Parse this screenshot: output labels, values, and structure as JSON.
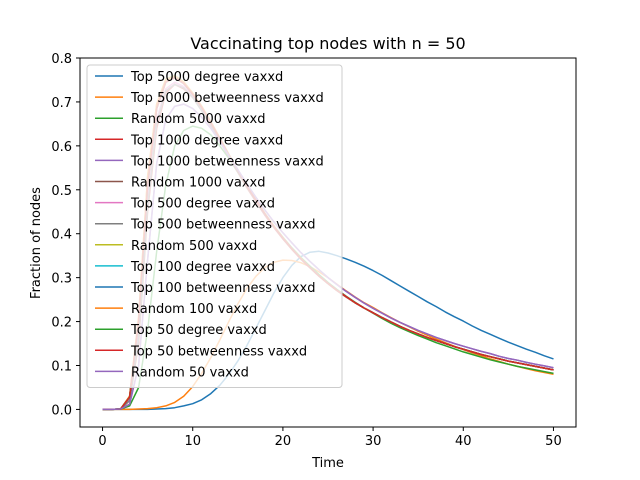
{
  "chart_data": {
    "type": "line",
    "title": "Vaccinating top nodes with n = 50",
    "xlabel": "Time",
    "ylabel": "Fraction of nodes",
    "xlim": [
      -2.5,
      52.5
    ],
    "ylim": [
      -0.04,
      0.8
    ],
    "xticks": [
      0,
      10,
      20,
      30,
      40,
      50
    ],
    "yticks": [
      0.0,
      0.1,
      0.2,
      0.3,
      0.4,
      0.5,
      0.6,
      0.7,
      0.8
    ],
    "legend_placement": "upper-left",
    "x": [
      0,
      1,
      2,
      3,
      4,
      5,
      6,
      7,
      8,
      9,
      10,
      11,
      12,
      13,
      14,
      15,
      16,
      17,
      18,
      19,
      20,
      21,
      22,
      23,
      24,
      25,
      26,
      27,
      28,
      29,
      30,
      31,
      32,
      33,
      34,
      35,
      36,
      37,
      38,
      39,
      40,
      41,
      42,
      43,
      44,
      45,
      46,
      47,
      48,
      49,
      50
    ],
    "series": [
      {
        "name": "Top 5000 degree vaxxd",
        "color": "#1f77b4",
        "values": [
          0,
          0,
          0,
          0,
          0,
          0,
          0.001,
          0.002,
          0.004,
          0.008,
          0.013,
          0.022,
          0.036,
          0.055,
          0.08,
          0.11,
          0.145,
          0.185,
          0.225,
          0.265,
          0.3,
          0.328,
          0.348,
          0.358,
          0.36,
          0.356,
          0.35,
          0.343,
          0.335,
          0.326,
          0.316,
          0.305,
          0.293,
          0.281,
          0.269,
          0.257,
          0.245,
          0.234,
          0.222,
          0.211,
          0.201,
          0.19,
          0.18,
          0.171,
          0.162,
          0.153,
          0.145,
          0.137,
          0.13,
          0.122,
          0.115
        ]
      },
      {
        "name": "Top 5000 betweenness vaxxd",
        "color": "#ff7f0e",
        "values": [
          0,
          0,
          0,
          0,
          0.001,
          0.002,
          0.004,
          0.008,
          0.016,
          0.03,
          0.052,
          0.082,
          0.118,
          0.158,
          0.2,
          0.24,
          0.275,
          0.303,
          0.323,
          0.335,
          0.34,
          0.339,
          0.334,
          0.325,
          0.313,
          0.3,
          0.285,
          0.27,
          0.256,
          0.243,
          0.232,
          0.22,
          0.209,
          0.198,
          0.188,
          0.178,
          0.169,
          0.16,
          0.152,
          0.144,
          0.136,
          0.129,
          0.122,
          0.115,
          0.109,
          0.103,
          0.098,
          0.093,
          0.088,
          0.084,
          0.08
        ]
      },
      {
        "name": "Random 5000 vaxxd",
        "color": "#2ca02c",
        "values": [
          0,
          0,
          0.001,
          0.008,
          0.05,
          0.18,
          0.36,
          0.51,
          0.6,
          0.635,
          0.645,
          0.64,
          0.625,
          0.6,
          0.572,
          0.54,
          0.508,
          0.476,
          0.446,
          0.418,
          0.392,
          0.368,
          0.346,
          0.326,
          0.307,
          0.289,
          0.273,
          0.258,
          0.244,
          0.231,
          0.219,
          0.207,
          0.196,
          0.186,
          0.177,
          0.168,
          0.16,
          0.152,
          0.145,
          0.138,
          0.131,
          0.125,
          0.119,
          0.113,
          0.108,
          0.103,
          0.098,
          0.094,
          0.09,
          0.086,
          0.082
        ]
      },
      {
        "name": "Top 1000 degree vaxxd",
        "color": "#d62728",
        "values": [
          0,
          0,
          0.001,
          0.02,
          0.15,
          0.45,
          0.64,
          0.72,
          0.74,
          0.73,
          0.71,
          0.68,
          0.645,
          0.61,
          0.575,
          0.54,
          0.505,
          0.473,
          0.442,
          0.414,
          0.388,
          0.364,
          0.342,
          0.322,
          0.303,
          0.286,
          0.27,
          0.256,
          0.243,
          0.231,
          0.22,
          0.209,
          0.199,
          0.189,
          0.18,
          0.172,
          0.164,
          0.157,
          0.15,
          0.143,
          0.137,
          0.131,
          0.125,
          0.12,
          0.115,
          0.11,
          0.106,
          0.102,
          0.098,
          0.094,
          0.09
        ]
      },
      {
        "name": "Top 1000 betweenness vaxxd",
        "color": "#9467bd",
        "values": [
          0,
          0,
          0.001,
          0.012,
          0.1,
          0.34,
          0.56,
          0.66,
          0.69,
          0.695,
          0.685,
          0.665,
          0.64,
          0.61,
          0.578,
          0.546,
          0.514,
          0.483,
          0.454,
          0.427,
          0.402,
          0.379,
          0.357,
          0.337,
          0.318,
          0.3,
          0.284,
          0.269,
          0.255,
          0.242,
          0.23,
          0.219,
          0.208,
          0.198,
          0.189,
          0.18,
          0.172,
          0.164,
          0.157,
          0.15,
          0.144,
          0.138,
          0.132,
          0.127,
          0.121,
          0.116,
          0.112,
          0.107,
          0.103,
          0.099,
          0.095
        ]
      },
      {
        "name": "Random 1000 vaxxd",
        "color": "#8c564b",
        "values": [
          0,
          0,
          0.001,
          0.03,
          0.2,
          0.52,
          0.69,
          0.75,
          0.76,
          0.745,
          0.72,
          0.69,
          0.655,
          0.618,
          0.581,
          0.545,
          0.51,
          0.477,
          0.446,
          0.417,
          0.391,
          0.366,
          0.344,
          0.323,
          0.304,
          0.287,
          0.271,
          0.257,
          0.243,
          0.231,
          0.22,
          0.209,
          0.199,
          0.189,
          0.18,
          0.172,
          0.164,
          0.157,
          0.15,
          0.143,
          0.137,
          0.131,
          0.125,
          0.12,
          0.115,
          0.11,
          0.106,
          0.102,
          0.098,
          0.094,
          0.09
        ]
      },
      {
        "name": "Top 500 degree vaxxd",
        "color": "#e377c2",
        "values": [
          0,
          0,
          0.001,
          0.025,
          0.18,
          0.48,
          0.66,
          0.73,
          0.745,
          0.735,
          0.712,
          0.683,
          0.65,
          0.614,
          0.578,
          0.543,
          0.508,
          0.475,
          0.444,
          0.416,
          0.39,
          0.366,
          0.343,
          0.323,
          0.304,
          0.287,
          0.271,
          0.257,
          0.243,
          0.231,
          0.22,
          0.209,
          0.199,
          0.189,
          0.18,
          0.172,
          0.164,
          0.157,
          0.15,
          0.143,
          0.137,
          0.131,
          0.125,
          0.12,
          0.115,
          0.11,
          0.106,
          0.102,
          0.098,
          0.094,
          0.09
        ]
      },
      {
        "name": "Top 500 betweenness vaxxd",
        "color": "#7f7f7f",
        "values": [
          0,
          0,
          0.001,
          0.02,
          0.16,
          0.46,
          0.65,
          0.725,
          0.74,
          0.732,
          0.71,
          0.68,
          0.647,
          0.612,
          0.576,
          0.541,
          0.507,
          0.475,
          0.444,
          0.416,
          0.39,
          0.366,
          0.343,
          0.323,
          0.304,
          0.287,
          0.271,
          0.257,
          0.243,
          0.231,
          0.22,
          0.209,
          0.199,
          0.189,
          0.18,
          0.172,
          0.164,
          0.157,
          0.15,
          0.143,
          0.137,
          0.131,
          0.125,
          0.12,
          0.115,
          0.11,
          0.106,
          0.102,
          0.098,
          0.094,
          0.09
        ]
      },
      {
        "name": "Random 500 vaxxd",
        "color": "#bcbd22",
        "values": [
          0,
          0,
          0.001,
          0.03,
          0.21,
          0.53,
          0.695,
          0.752,
          0.76,
          0.746,
          0.72,
          0.69,
          0.655,
          0.618,
          0.581,
          0.545,
          0.51,
          0.477,
          0.446,
          0.417,
          0.391,
          0.366,
          0.344,
          0.323,
          0.304,
          0.287,
          0.271,
          0.257,
          0.243,
          0.231,
          0.22,
          0.209,
          0.199,
          0.189,
          0.18,
          0.172,
          0.164,
          0.157,
          0.15,
          0.143,
          0.137,
          0.131,
          0.125,
          0.12,
          0.115,
          0.11,
          0.106,
          0.102,
          0.098,
          0.094,
          0.09
        ]
      },
      {
        "name": "Top 100 degree vaxxd",
        "color": "#17becf",
        "values": [
          0,
          0,
          0.001,
          0.028,
          0.2,
          0.51,
          0.685,
          0.745,
          0.755,
          0.742,
          0.717,
          0.687,
          0.652,
          0.616,
          0.579,
          0.544,
          0.509,
          0.476,
          0.445,
          0.416,
          0.39,
          0.366,
          0.343,
          0.323,
          0.304,
          0.287,
          0.271,
          0.257,
          0.243,
          0.231,
          0.22,
          0.209,
          0.199,
          0.189,
          0.18,
          0.172,
          0.164,
          0.157,
          0.15,
          0.143,
          0.137,
          0.131,
          0.125,
          0.12,
          0.115,
          0.11,
          0.106,
          0.102,
          0.098,
          0.094,
          0.09
        ]
      },
      {
        "name": "Top 100 betweenness vaxxd",
        "color": "#1f77b4",
        "values": [
          0,
          0,
          0.001,
          0.028,
          0.2,
          0.51,
          0.685,
          0.745,
          0.755,
          0.742,
          0.717,
          0.687,
          0.652,
          0.616,
          0.579,
          0.544,
          0.509,
          0.476,
          0.445,
          0.416,
          0.39,
          0.366,
          0.343,
          0.323,
          0.304,
          0.287,
          0.271,
          0.257,
          0.243,
          0.231,
          0.22,
          0.209,
          0.199,
          0.189,
          0.18,
          0.172,
          0.164,
          0.157,
          0.15,
          0.143,
          0.137,
          0.131,
          0.125,
          0.12,
          0.115,
          0.11,
          0.106,
          0.102,
          0.098,
          0.094,
          0.09
        ]
      },
      {
        "name": "Random 100 vaxxd",
        "color": "#ff7f0e",
        "values": [
          0,
          0,
          0.001,
          0.03,
          0.21,
          0.53,
          0.695,
          0.75,
          0.758,
          0.745,
          0.72,
          0.69,
          0.655,
          0.618,
          0.581,
          0.545,
          0.51,
          0.477,
          0.446,
          0.417,
          0.391,
          0.366,
          0.344,
          0.323,
          0.304,
          0.287,
          0.271,
          0.257,
          0.243,
          0.231,
          0.22,
          0.209,
          0.199,
          0.189,
          0.18,
          0.172,
          0.164,
          0.157,
          0.15,
          0.143,
          0.137,
          0.131,
          0.125,
          0.12,
          0.115,
          0.11,
          0.106,
          0.102,
          0.098,
          0.094,
          0.09
        ]
      },
      {
        "name": "Top 50 degree vaxxd",
        "color": "#2ca02c",
        "values": [
          0,
          0,
          0.001,
          0.028,
          0.2,
          0.51,
          0.685,
          0.745,
          0.755,
          0.742,
          0.717,
          0.687,
          0.652,
          0.616,
          0.579,
          0.544,
          0.509,
          0.476,
          0.445,
          0.416,
          0.39,
          0.366,
          0.343,
          0.323,
          0.304,
          0.287,
          0.271,
          0.257,
          0.243,
          0.231,
          0.22,
          0.209,
          0.199,
          0.189,
          0.18,
          0.172,
          0.164,
          0.157,
          0.15,
          0.143,
          0.137,
          0.131,
          0.125,
          0.12,
          0.115,
          0.11,
          0.106,
          0.102,
          0.098,
          0.094,
          0.09
        ]
      },
      {
        "name": "Top 50 betweenness vaxxd",
        "color": "#d62728",
        "values": [
          0,
          0,
          0.001,
          0.028,
          0.2,
          0.51,
          0.685,
          0.745,
          0.755,
          0.742,
          0.717,
          0.687,
          0.652,
          0.616,
          0.579,
          0.544,
          0.509,
          0.476,
          0.445,
          0.416,
          0.39,
          0.366,
          0.343,
          0.323,
          0.304,
          0.287,
          0.271,
          0.257,
          0.243,
          0.231,
          0.22,
          0.209,
          0.199,
          0.189,
          0.18,
          0.172,
          0.164,
          0.157,
          0.15,
          0.143,
          0.137,
          0.131,
          0.125,
          0.12,
          0.115,
          0.11,
          0.106,
          0.102,
          0.098,
          0.094,
          0.09
        ]
      },
      {
        "name": "Random 50 vaxxd",
        "color": "#9467bd",
        "values": [
          0,
          0,
          0.001,
          0.012,
          0.1,
          0.34,
          0.56,
          0.66,
          0.69,
          0.695,
          0.685,
          0.665,
          0.64,
          0.61,
          0.578,
          0.546,
          0.514,
          0.483,
          0.454,
          0.427,
          0.402,
          0.379,
          0.357,
          0.337,
          0.318,
          0.3,
          0.284,
          0.269,
          0.255,
          0.242,
          0.23,
          0.219,
          0.208,
          0.198,
          0.189,
          0.18,
          0.172,
          0.164,
          0.157,
          0.15,
          0.144,
          0.138,
          0.132,
          0.127,
          0.121,
          0.116,
          0.112,
          0.107,
          0.103,
          0.099,
          0.095
        ]
      }
    ]
  }
}
